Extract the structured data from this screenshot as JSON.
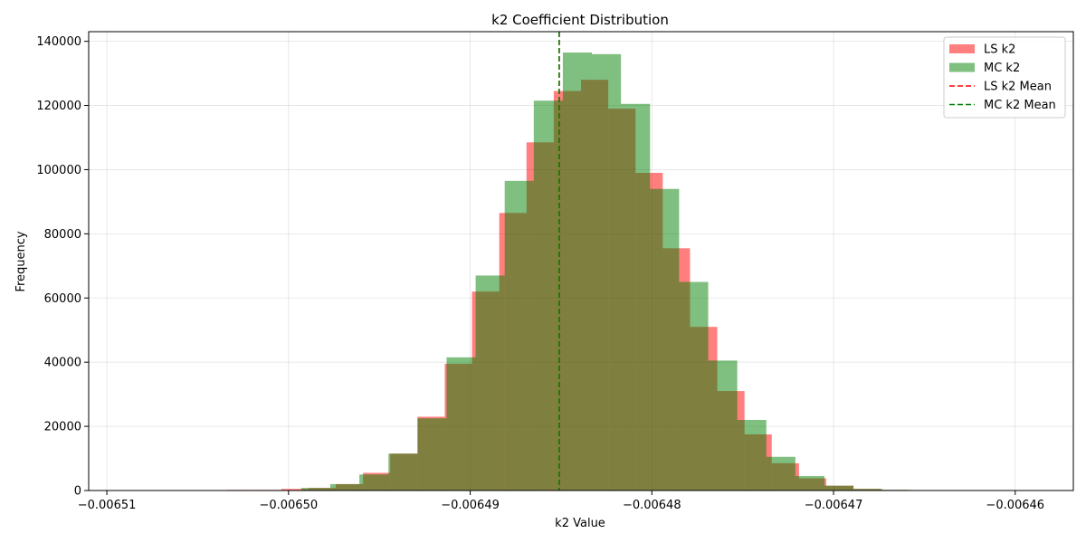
{
  "chart_data": {
    "type": "histogram",
    "title": "k2 Coefficient Distribution",
    "xlabel": "k2 Value",
    "ylabel": "Frequency",
    "xlim": [
      -0.006511,
      -0.0064568
    ],
    "ylim": [
      0,
      143000
    ],
    "grid": true,
    "legend_position": "top-right",
    "x_ticks": [
      -0.00651,
      -0.0065,
      -0.00649,
      -0.00648,
      -0.00647,
      -0.00646
    ],
    "x_tick_labels": [
      "−0.00651",
      "−0.00650",
      "−0.00649",
      "−0.00648",
      "−0.00647",
      "−0.00646"
    ],
    "y_ticks": [
      0,
      20000,
      40000,
      60000,
      80000,
      100000,
      120000,
      140000
    ],
    "y_tick_labels": [
      "0",
      "20000",
      "40000",
      "60000",
      "80000",
      "100000",
      "120000",
      "140000"
    ],
    "series": [
      {
        "name": "LS k2",
        "color": "#ff0000",
        "opacity": 0.5,
        "bin_start": -0.0065034,
        "bin_width": 1.5e-06,
        "values": [
          200,
          200,
          500,
          800,
          2000,
          5500,
          11500,
          23000,
          39500,
          62000,
          86500,
          108500,
          124500,
          128000,
          119000,
          99000,
          75500,
          51000,
          31000,
          17500,
          8500,
          3800,
          1500,
          500,
          200,
          100
        ]
      },
      {
        "name": "MC k2",
        "color": "#008000",
        "opacity": 0.5,
        "bin_start": -0.0064993,
        "bin_width": 1.6e-06,
        "values": [
          800,
          2000,
          5000,
          11500,
          22500,
          41500,
          67000,
          96500,
          121500,
          136500,
          136000,
          120500,
          94000,
          65000,
          40500,
          22000,
          10500,
          4500,
          1500,
          500,
          200
        ]
      }
    ],
    "mean_lines": [
      {
        "name": "LS k2 Mean",
        "color": "#ff0000",
        "x": -0.0064851
      },
      {
        "name": "MC k2 Mean",
        "color": "#008000",
        "x": -0.0064851
      }
    ]
  }
}
